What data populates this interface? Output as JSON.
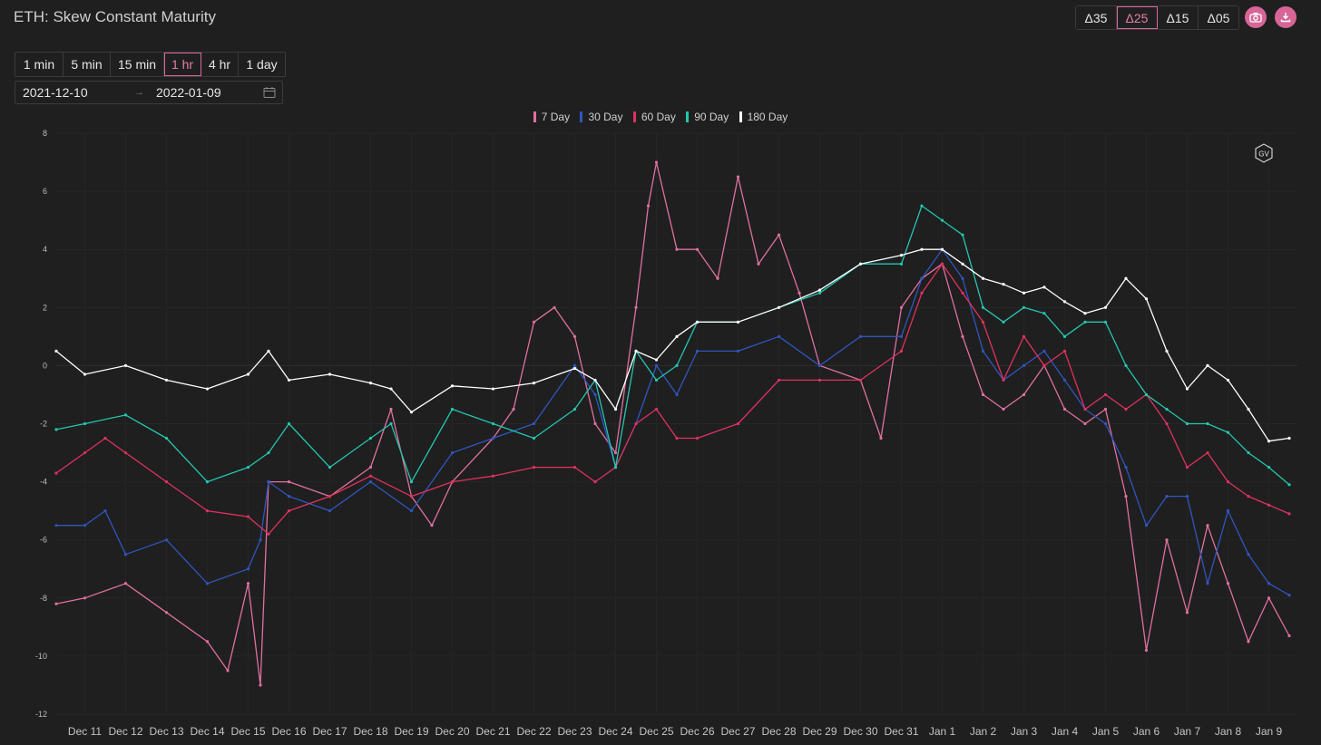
{
  "header": {
    "title": "ETH: Skew Constant Maturity"
  },
  "delta_buttons": [
    {
      "label": "Δ35",
      "active": false
    },
    {
      "label": "Δ25",
      "active": true
    },
    {
      "label": "Δ15",
      "active": false
    },
    {
      "label": "Δ05",
      "active": false
    }
  ],
  "actions": {
    "screenshot_icon": "camera-icon",
    "download_icon": "download-icon"
  },
  "timeframes": [
    {
      "label": "1 min",
      "active": false
    },
    {
      "label": "5 min",
      "active": false
    },
    {
      "label": "15 min",
      "active": false
    },
    {
      "label": "1 hr",
      "active": true
    },
    {
      "label": "4 hr",
      "active": false
    },
    {
      "label": "1 day",
      "active": false
    }
  ],
  "date_range": {
    "start": "2021-12-10",
    "end": "2022-01-09",
    "calendar_icon": "calendar-icon"
  },
  "watermark": {
    "text": "GV"
  },
  "colors": {
    "7d": "#e0709f",
    "30d": "#2f56c0",
    "60d": "#e0315f",
    "90d": "#24c6b0",
    "180d": "#ffffff",
    "accent": "#d76597"
  },
  "chart_data": {
    "type": "line",
    "title": "",
    "xlabel": "",
    "ylabel": "",
    "ylim": [
      -12,
      8
    ],
    "yticks": [
      -12,
      -10,
      -8,
      -6,
      -4,
      -2,
      0,
      2,
      4,
      6,
      8
    ],
    "xlim_days": [
      0.3,
      30.7
    ],
    "xticks": [
      {
        "day": 1,
        "label": "Dec 11"
      },
      {
        "day": 2,
        "label": "Dec 12"
      },
      {
        "day": 3,
        "label": "Dec 13"
      },
      {
        "day": 4,
        "label": "Dec 14"
      },
      {
        "day": 5,
        "label": "Dec 15"
      },
      {
        "day": 6,
        "label": "Dec 16"
      },
      {
        "day": 7,
        "label": "Dec 17"
      },
      {
        "day": 8,
        "label": "Dec 18"
      },
      {
        "day": 9,
        "label": "Dec 19"
      },
      {
        "day": 10,
        "label": "Dec 20"
      },
      {
        "day": 11,
        "label": "Dec 21"
      },
      {
        "day": 12,
        "label": "Dec 22"
      },
      {
        "day": 13,
        "label": "Dec 23"
      },
      {
        "day": 14,
        "label": "Dec 24"
      },
      {
        "day": 15,
        "label": "Dec 25"
      },
      {
        "day": 16,
        "label": "Dec 26"
      },
      {
        "day": 17,
        "label": "Dec 27"
      },
      {
        "day": 18,
        "label": "Dec 28"
      },
      {
        "day": 19,
        "label": "Dec 29"
      },
      {
        "day": 20,
        "label": "Dec 30"
      },
      {
        "day": 21,
        "label": "Dec 31"
      },
      {
        "day": 22,
        "label": "Jan 1"
      },
      {
        "day": 23,
        "label": "Jan 2"
      },
      {
        "day": 24,
        "label": "Jan 3"
      },
      {
        "day": 25,
        "label": "Jan 4"
      },
      {
        "day": 26,
        "label": "Jan 5"
      },
      {
        "day": 27,
        "label": "Jan 6"
      },
      {
        "day": 28,
        "label": "Jan 7"
      },
      {
        "day": 29,
        "label": "Jan 8"
      },
      {
        "day": 30,
        "label": "Jan 9"
      }
    ],
    "grid": true,
    "legend_position": "top-center",
    "series": [
      {
        "name": "7 Day",
        "color": "#e0709f",
        "x": [
          0.3,
          1,
          2,
          3,
          4,
          4.5,
          5,
          5.3,
          5.5,
          6,
          7,
          8,
          8.5,
          9,
          9.5,
          10,
          11,
          11.5,
          12,
          12.5,
          13,
          13.5,
          14,
          14.5,
          14.8,
          15,
          15.5,
          16,
          16.5,
          17,
          17.5,
          18,
          18.5,
          19,
          20,
          20.5,
          21,
          21.5,
          22,
          22.5,
          23,
          23.5,
          24,
          24.5,
          25,
          25.5,
          26,
          26.5,
          27,
          27.5,
          28,
          28.5,
          29,
          29.5,
          30,
          30.5
        ],
        "y": [
          -8.2,
          -8,
          -7.5,
          -8.5,
          -9.5,
          -10.5,
          -7.5,
          -11,
          -4,
          -4,
          -4.5,
          -3.5,
          -1.5,
          -4.5,
          -5.5,
          -4,
          -2.5,
          -1.5,
          1.5,
          2,
          1,
          -2,
          -3,
          2,
          5.5,
          7,
          4,
          4,
          3,
          6.5,
          3.5,
          4.5,
          2.5,
          0,
          -0.5,
          -2.5,
          2,
          3,
          3.5,
          1,
          -1,
          -1.5,
          -1,
          0,
          -1.5,
          -2,
          -1.5,
          -4.5,
          -9.8,
          -6,
          -8.5,
          -5.5,
          -7.5,
          -9.5,
          -8,
          -9.3
        ]
      },
      {
        "name": "30 Day",
        "color": "#2f56c0",
        "x": [
          0.3,
          1,
          1.5,
          2,
          3,
          4,
          5,
          5.3,
          5.5,
          6,
          7,
          8,
          9,
          10,
          11,
          12,
          13,
          13.5,
          14,
          14.5,
          15,
          15.5,
          16,
          17,
          18,
          19,
          20,
          21,
          21.5,
          22,
          22.5,
          23,
          23.5,
          24,
          24.5,
          25,
          25.5,
          26,
          26.5,
          27,
          27.5,
          28,
          28.5,
          29,
          29.5,
          30,
          30.5
        ],
        "y": [
          -5.5,
          -5.5,
          -5,
          -6.5,
          -6,
          -7.5,
          -7,
          -6,
          -4,
          -4.5,
          -5,
          -4,
          -5,
          -3,
          -2.5,
          -2,
          0,
          -1,
          -3.5,
          -2,
          0,
          -1,
          0.5,
          0.5,
          1,
          0,
          1,
          1,
          3,
          4,
          3,
          0.5,
          -0.5,
          0,
          0.5,
          -0.5,
          -1.5,
          -2,
          -3.5,
          -5.5,
          -4.5,
          -4.5,
          -7.5,
          -5,
          -6.5,
          -7.5,
          -7.9
        ]
      },
      {
        "name": "60 Day",
        "color": "#e0315f",
        "x": [
          0.3,
          1,
          1.5,
          2,
          3,
          4,
          5,
          5.5,
          6,
          7,
          8,
          9,
          10,
          11,
          12,
          13,
          13.5,
          14,
          14.5,
          15,
          15.5,
          16,
          17,
          18,
          19,
          20,
          21,
          21.5,
          22,
          22.5,
          23,
          23.5,
          24,
          24.5,
          25,
          25.5,
          26,
          26.5,
          27,
          27.5,
          28,
          28.5,
          29,
          29.5,
          30,
          30.5
        ],
        "y": [
          -3.7,
          -3,
          -2.5,
          -3,
          -4,
          -5,
          -5.2,
          -5.8,
          -5,
          -4.5,
          -3.8,
          -4.5,
          -4,
          -3.8,
          -3.5,
          -3.5,
          -4,
          -3.5,
          -2,
          -1.5,
          -2.5,
          -2.5,
          -2,
          -0.5,
          -0.5,
          -0.5,
          0.5,
          2.5,
          3.5,
          2.5,
          1.5,
          -0.5,
          1,
          0,
          0.5,
          -1.5,
          -1,
          -1.5,
          -1,
          -2,
          -3.5,
          -3,
          -4,
          -4.5,
          -4.8,
          -5.1
        ]
      },
      {
        "name": "90 Day",
        "color": "#24c6b0",
        "x": [
          0.3,
          1,
          2,
          3,
          4,
          5,
          5.5,
          6,
          7,
          8,
          8.5,
          9,
          10,
          11,
          12,
          13,
          13.5,
          14,
          14.5,
          15,
          15.5,
          16,
          17,
          18,
          19,
          20,
          21,
          21.5,
          22,
          22.5,
          23,
          23.5,
          24,
          24.5,
          25,
          25.5,
          26,
          26.5,
          27,
          27.5,
          28,
          28.5,
          29,
          29.5,
          30,
          30.5
        ],
        "y": [
          -2.2,
          -2,
          -1.7,
          -2.5,
          -4,
          -3.5,
          -3,
          -2,
          -3.5,
          -2.5,
          -2,
          -4,
          -1.5,
          -2,
          -2.5,
          -1.5,
          -0.5,
          -3.5,
          0.5,
          -0.5,
          0,
          1.5,
          1.5,
          2,
          2.5,
          3.5,
          3.5,
          5.5,
          5,
          4.5,
          2,
          1.5,
          2,
          1.8,
          1,
          1.5,
          1.5,
          0,
          -1,
          -1.5,
          -2,
          -2,
          -2.3,
          -3,
          -3.5,
          -4.1
        ]
      },
      {
        "name": "180 Day",
        "color": "#ffffff",
        "x": [
          0.3,
          1,
          2,
          3,
          4,
          5,
          5.5,
          6,
          7,
          8,
          8.5,
          9,
          10,
          11,
          12,
          13,
          13.5,
          14,
          14.5,
          15,
          15.5,
          16,
          17,
          18,
          19,
          20,
          21,
          21.5,
          22,
          22.5,
          23,
          23.5,
          24,
          24.5,
          25,
          25.5,
          26,
          26.5,
          27,
          27.5,
          28,
          28.5,
          29,
          29.5,
          30,
          30.5
        ],
        "y": [
          0.5,
          -0.3,
          0,
          -0.5,
          -0.8,
          -0.3,
          0.5,
          -0.5,
          -0.3,
          -0.6,
          -0.8,
          -1.6,
          -0.7,
          -0.8,
          -0.6,
          -0.1,
          -0.5,
          -1.5,
          0.5,
          0.2,
          1,
          1.5,
          1.5,
          2,
          2.6,
          3.5,
          3.8,
          4,
          4,
          3.5,
          3,
          2.8,
          2.5,
          2.7,
          2.2,
          1.8,
          2,
          3,
          2.3,
          0.5,
          -0.8,
          0,
          -0.5,
          -1.5,
          -2.6,
          -2.5
        ]
      }
    ]
  }
}
